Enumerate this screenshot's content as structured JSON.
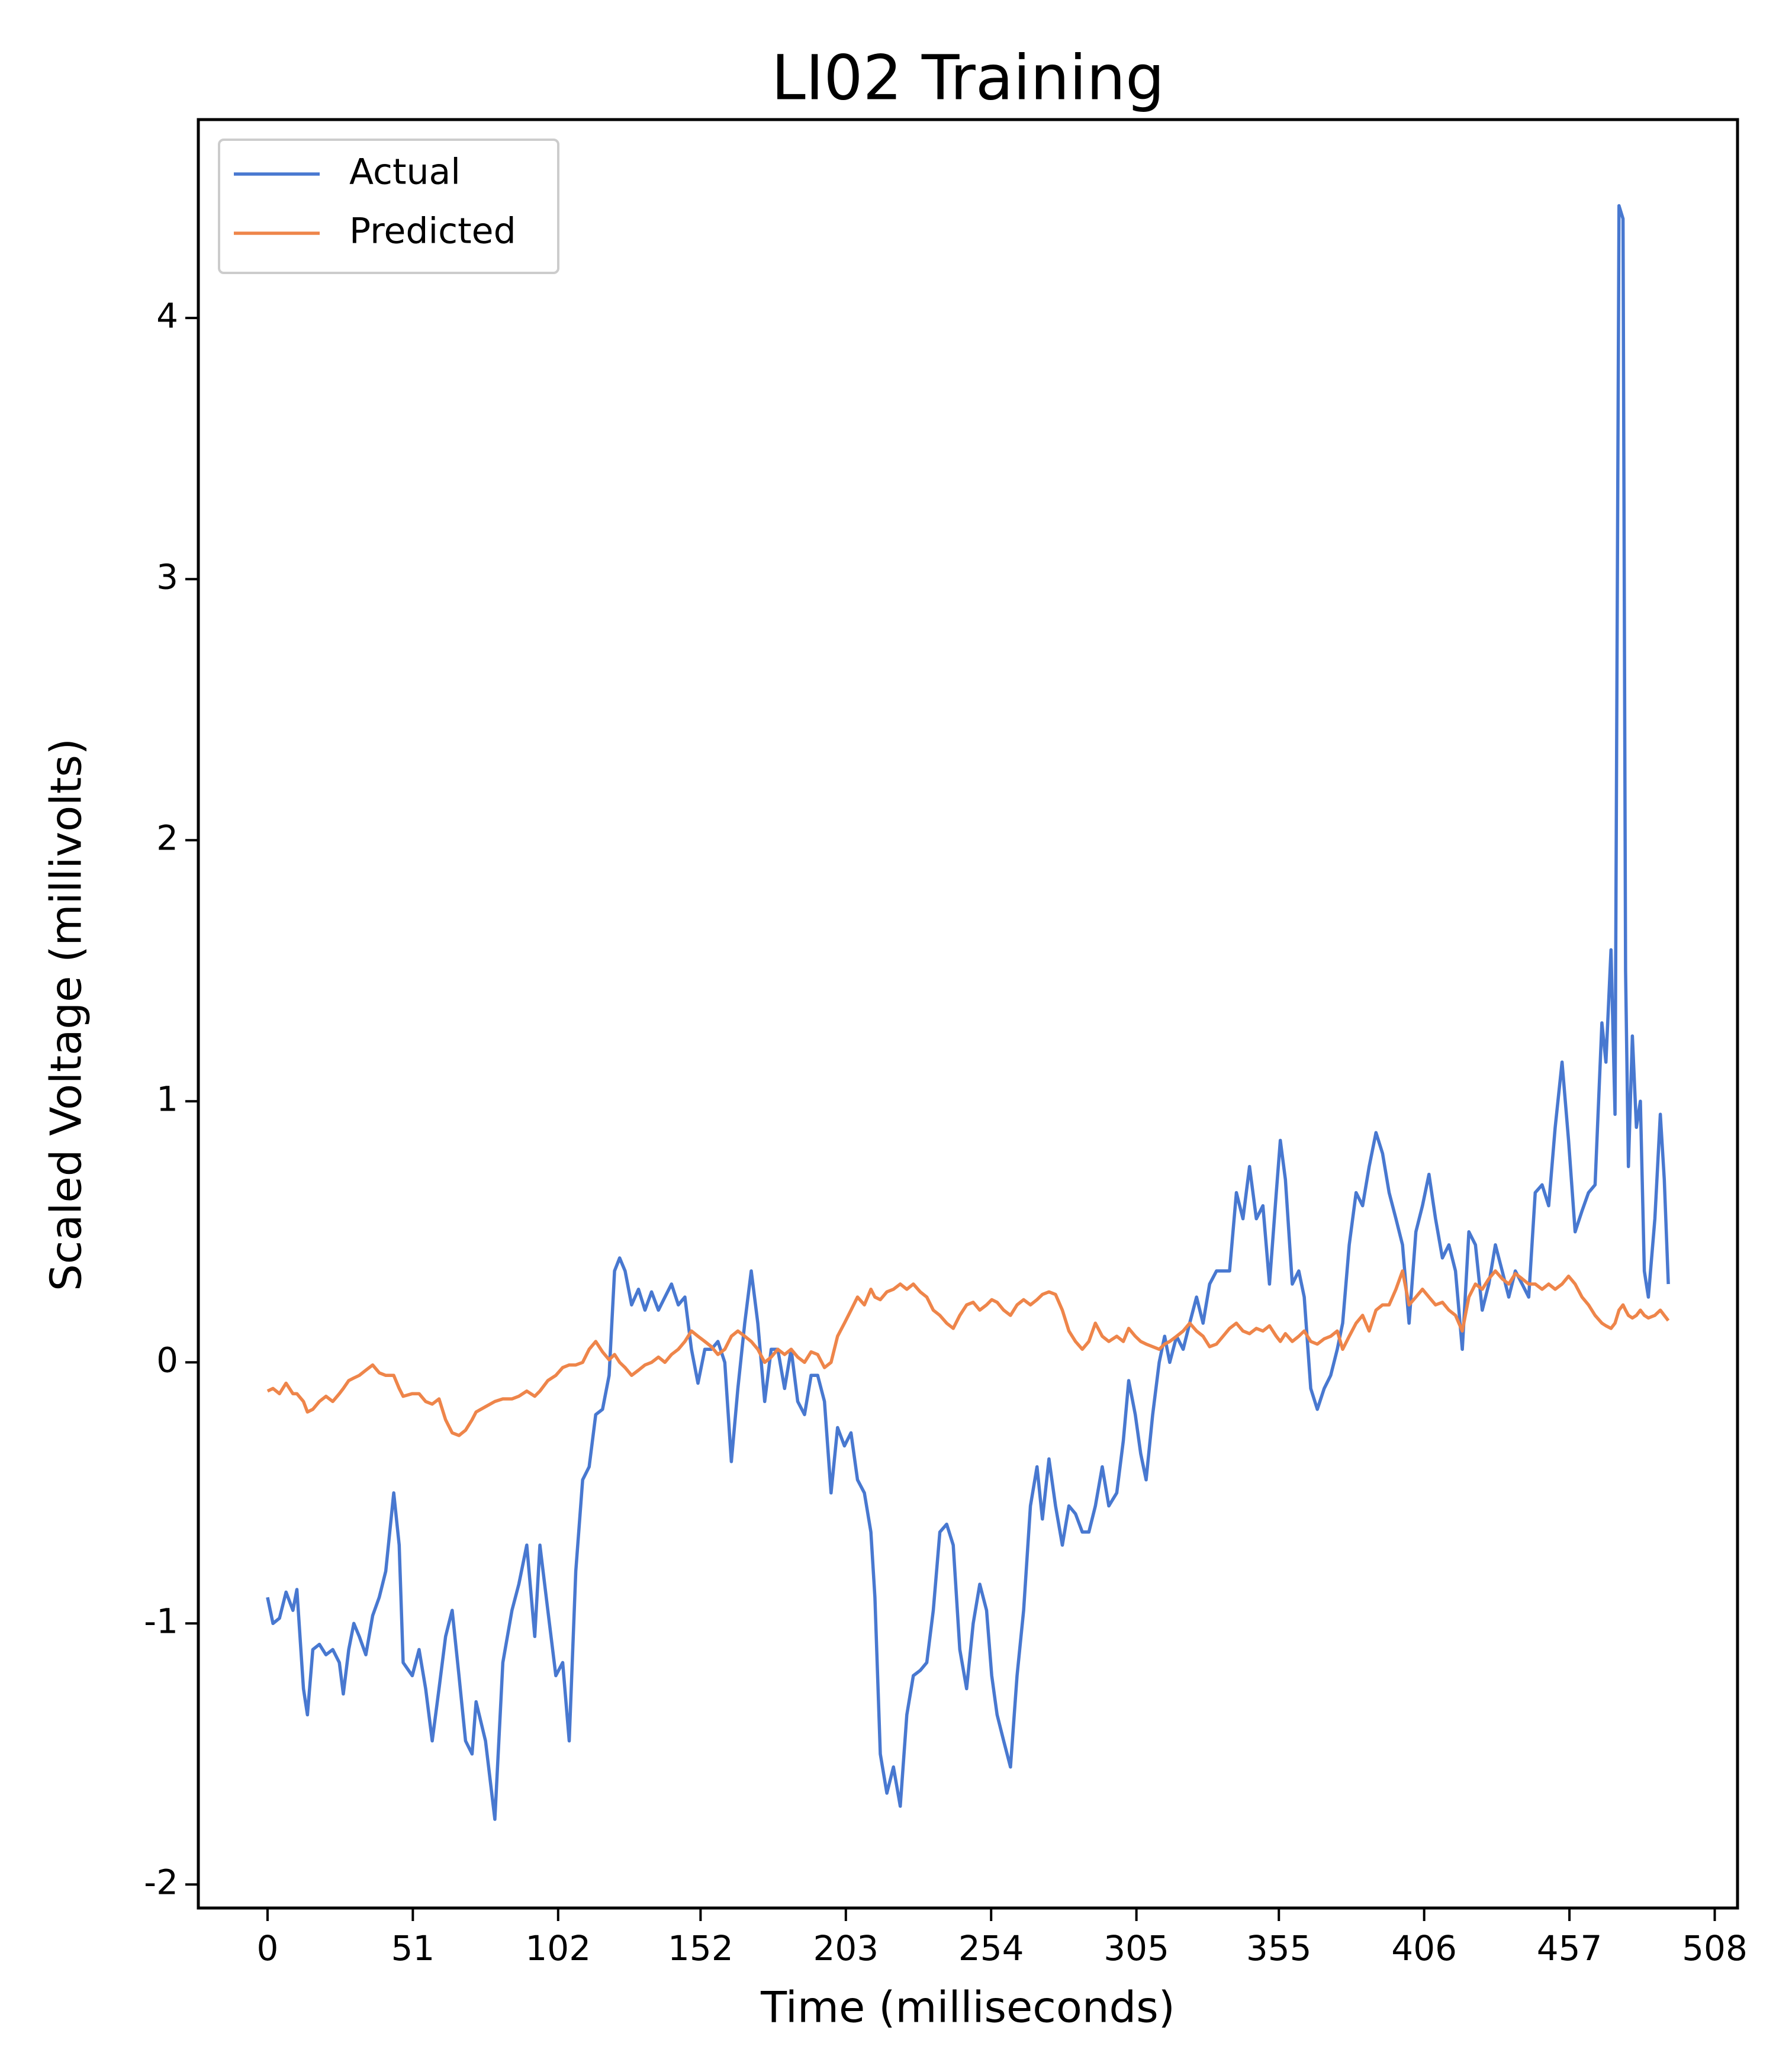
{
  "chart_data": {
    "type": "line",
    "title": "LI02 Training",
    "x_label": "Time (milliseconds)",
    "y_label": "Scaled Voltage (millivolts)",
    "x": [
      0,
      1.9,
      4.2,
      6.5,
      8.9,
      10.3,
      12.6,
      14.0,
      15.9,
      18.2,
      20.5,
      22.9,
      25.2,
      26.6,
      28.5,
      30.3,
      32.2,
      34.5,
      36.9,
      39.2,
      41.5,
      44.3,
      46.2,
      47.6,
      50.8,
      53.2,
      55.5,
      57.8,
      60.2,
      62.5,
      64.8,
      67.2,
      69.5,
      71.8,
      73.2,
      76.5,
      79.8,
      82.6,
      85.8,
      88.2,
      91.0,
      93.8,
      95.6,
      98.4,
      101.2,
      103.6,
      105.9,
      108.2,
      110.6,
      112.9,
      115.2,
      117.6,
      119.9,
      121.8,
      123.6,
      125.5,
      127.8,
      130.2,
      132.5,
      134.8,
      137.2,
      139.5,
      141.8,
      144.2,
      146.5,
      148.8,
      151.1,
      153.5,
      155.8,
      158.1,
      160.5,
      162.8,
      165.1,
      167.5,
      169.8,
      172.1,
      174.5,
      176.8,
      179.1,
      181.5,
      183.8,
      186.1,
      188.5,
      190.8,
      193.1,
      195.5,
      197.8,
      200.1,
      202.5,
      204.8,
      207.1,
      209.5,
      211.8,
      213.2,
      215.1,
      217.4,
      219.7,
      222.1,
      224.4,
      226.7,
      229.1,
      231.4,
      233.7,
      236.0,
      238.4,
      240.7,
      243.0,
      245.4,
      247.7,
      250.0,
      252.4,
      254.2,
      256.1,
      258.4,
      260.8,
      263.1,
      265.4,
      267.8,
      270.1,
      272.0,
      274.3,
      276.6,
      279.0,
      281.3,
      283.6,
      286.0,
      288.3,
      290.6,
      293.0,
      295.3,
      298.1,
      300.4,
      302.3,
      304.6,
      306.5,
      308.4,
      310.7,
      313.0,
      314.9,
      316.7,
      319.1,
      321.4,
      323.7,
      326.1,
      328.4,
      330.7,
      333.1,
      335.4,
      337.7,
      340.1,
      342.4,
      344.7,
      347.1,
      349.4,
      351.7,
      354.1,
      355.5,
      357.3,
      359.7,
      362.0,
      363.9,
      366.2,
      368.5,
      370.9,
      373.2,
      375.5,
      377.4,
      379.7,
      382.1,
      384.4,
      386.7,
      389.1,
      391.4,
      393.7,
      396.1,
      398.4,
      400.7,
      403.1,
      405.4,
      407.7,
      410.0,
      412.4,
      414.7,
      417.0,
      419.4,
      421.7,
      424.0,
      426.4,
      428.7,
      431.0,
      433.4,
      435.7,
      438.0,
      440.4,
      442.7,
      445.0,
      447.4,
      449.7,
      452.0,
      454.4,
      456.7,
      459.0,
      461.4,
      463.7,
      466.0,
      468.4,
      469.8,
      471.6,
      473.0,
      474.4,
      475.8,
      476.7,
      477.7,
      479.1,
      480.5,
      481.9,
      483.3,
      484.7,
      487.0,
      488.9,
      490.3,
      491.7
    ],
    "series": [
      {
        "name": "Actual",
        "color": "#4878d0",
        "values": [
          -0.9,
          -1.0,
          -0.98,
          -0.88,
          -0.95,
          -0.87,
          -1.25,
          -1.35,
          -1.1,
          -1.08,
          -1.12,
          -1.1,
          -1.15,
          -1.27,
          -1.1,
          -1.0,
          -1.05,
          -1.12,
          -0.97,
          -0.9,
          -0.8,
          -0.5,
          -0.7,
          -1.15,
          -1.2,
          -1.1,
          -1.25,
          -1.45,
          -1.25,
          -1.05,
          -0.95,
          -1.2,
          -1.45,
          -1.5,
          -1.3,
          -1.45,
          -1.75,
          -1.15,
          -0.95,
          -0.85,
          -0.7,
          -1.05,
          -0.7,
          -0.95,
          -1.2,
          -1.15,
          -1.45,
          -0.8,
          -0.45,
          -0.4,
          -0.2,
          -0.18,
          -0.05,
          0.35,
          0.4,
          0.35,
          0.22,
          0.28,
          0.2,
          0.27,
          0.2,
          0.25,
          0.3,
          0.22,
          0.25,
          0.05,
          -0.08,
          0.05,
          0.05,
          0.08,
          0.0,
          -0.38,
          -0.1,
          0.15,
          0.35,
          0.15,
          -0.15,
          0.05,
          0.05,
          -0.1,
          0.05,
          -0.15,
          -0.2,
          -0.05,
          -0.05,
          -0.15,
          -0.5,
          -0.25,
          -0.32,
          -0.27,
          -0.45,
          -0.5,
          -0.65,
          -0.9,
          -1.5,
          -1.65,
          -1.55,
          -1.7,
          -1.35,
          -1.2,
          -1.18,
          -1.15,
          -0.95,
          -0.65,
          -0.62,
          -0.7,
          -1.1,
          -1.25,
          -1.0,
          -0.85,
          -0.95,
          -1.2,
          -1.35,
          -1.45,
          -1.55,
          -1.2,
          -0.95,
          -0.55,
          -0.4,
          -0.6,
          -0.37,
          -0.55,
          -0.7,
          -0.55,
          -0.58,
          -0.65,
          -0.65,
          -0.55,
          -0.4,
          -0.55,
          -0.5,
          -0.3,
          -0.07,
          -0.2,
          -0.35,
          -0.45,
          -0.2,
          0.0,
          0.1,
          0.0,
          0.1,
          0.05,
          0.15,
          0.25,
          0.15,
          0.3,
          0.35,
          0.35,
          0.35,
          0.65,
          0.55,
          0.75,
          0.55,
          0.6,
          0.3,
          0.65,
          0.85,
          0.7,
          0.3,
          0.35,
          0.25,
          -0.1,
          -0.18,
          -0.1,
          -0.05,
          0.05,
          0.15,
          0.45,
          0.65,
          0.6,
          0.75,
          0.88,
          0.8,
          0.65,
          0.55,
          0.45,
          0.15,
          0.5,
          0.6,
          0.72,
          0.55,
          0.4,
          0.45,
          0.35,
          0.05,
          0.5,
          0.45,
          0.2,
          0.3,
          0.45,
          0.35,
          0.25,
          0.35,
          0.3,
          0.25,
          0.65,
          0.68,
          0.6,
          0.9,
          1.15,
          0.85,
          0.5,
          0.58,
          0.65,
          0.68,
          1.3,
          1.15,
          1.58,
          0.95,
          4.43,
          4.38,
          1.5,
          0.75,
          1.25,
          0.9,
          1.0,
          0.35,
          0.25,
          0.55,
          0.95,
          0.7,
          0.3
        ]
      },
      {
        "name": "Predicted",
        "color": "#ee854a",
        "values": [
          -0.11,
          -0.1,
          -0.12,
          -0.08,
          -0.12,
          -0.12,
          -0.15,
          -0.19,
          -0.18,
          -0.15,
          -0.13,
          -0.15,
          -0.12,
          -0.1,
          -0.07,
          -0.06,
          -0.05,
          -0.03,
          -0.01,
          -0.04,
          -0.05,
          -0.05,
          -0.1,
          -0.13,
          -0.12,
          -0.12,
          -0.15,
          -0.16,
          -0.14,
          -0.22,
          -0.27,
          -0.28,
          -0.26,
          -0.22,
          -0.19,
          -0.17,
          -0.15,
          -0.14,
          -0.14,
          -0.13,
          -0.11,
          -0.13,
          -0.11,
          -0.07,
          -0.05,
          -0.02,
          -0.01,
          -0.01,
          0.0,
          0.05,
          0.08,
          0.04,
          0.01,
          0.03,
          0.0,
          -0.02,
          -0.05,
          -0.03,
          -0.01,
          0.0,
          0.02,
          0.0,
          0.03,
          0.05,
          0.08,
          0.12,
          0.1,
          0.08,
          0.06,
          0.03,
          0.05,
          0.1,
          0.12,
          0.1,
          0.08,
          0.05,
          0.0,
          0.02,
          0.05,
          0.03,
          0.05,
          0.02,
          0.0,
          0.04,
          0.03,
          -0.02,
          0.0,
          0.1,
          0.15,
          0.2,
          0.25,
          0.22,
          0.28,
          0.25,
          0.24,
          0.27,
          0.28,
          0.3,
          0.28,
          0.3,
          0.27,
          0.25,
          0.2,
          0.18,
          0.15,
          0.13,
          0.18,
          0.22,
          0.23,
          0.2,
          0.22,
          0.24,
          0.23,
          0.2,
          0.18,
          0.22,
          0.24,
          0.22,
          0.24,
          0.26,
          0.27,
          0.26,
          0.2,
          0.12,
          0.08,
          0.05,
          0.08,
          0.15,
          0.1,
          0.08,
          0.1,
          0.08,
          0.13,
          0.1,
          0.08,
          0.07,
          0.06,
          0.05,
          0.07,
          0.08,
          0.1,
          0.12,
          0.15,
          0.12,
          0.1,
          0.06,
          0.07,
          0.1,
          0.13,
          0.15,
          0.12,
          0.11,
          0.13,
          0.12,
          0.14,
          0.1,
          0.08,
          0.11,
          0.08,
          0.1,
          0.12,
          0.08,
          0.07,
          0.09,
          0.1,
          0.12,
          0.05,
          0.1,
          0.15,
          0.18,
          0.12,
          0.2,
          0.22,
          0.22,
          0.28,
          0.35,
          0.22,
          0.25,
          0.28,
          0.25,
          0.22,
          0.23,
          0.2,
          0.18,
          0.12,
          0.25,
          0.3,
          0.28,
          0.32,
          0.35,
          0.32,
          0.3,
          0.34,
          0.32,
          0.3,
          0.3,
          0.28,
          0.3,
          0.28,
          0.3,
          0.33,
          0.3,
          0.25,
          0.22,
          0.18,
          0.15,
          0.14,
          0.13,
          0.15,
          0.2,
          0.22,
          0.2,
          0.18,
          0.17,
          0.18,
          0.2,
          0.18,
          0.17,
          0.18,
          0.2,
          0.18,
          0.16
        ]
      }
    ],
    "xlim": [
      -24.3,
      516
    ],
    "ylim": [
      -2.09,
      4.76
    ],
    "xticks": [
      0,
      51,
      102,
      152,
      203,
      254,
      305,
      355,
      406,
      457,
      508
    ],
    "yticks": [
      -2,
      -1,
      0,
      1,
      2,
      3,
      4
    ],
    "legend": "upper left"
  }
}
